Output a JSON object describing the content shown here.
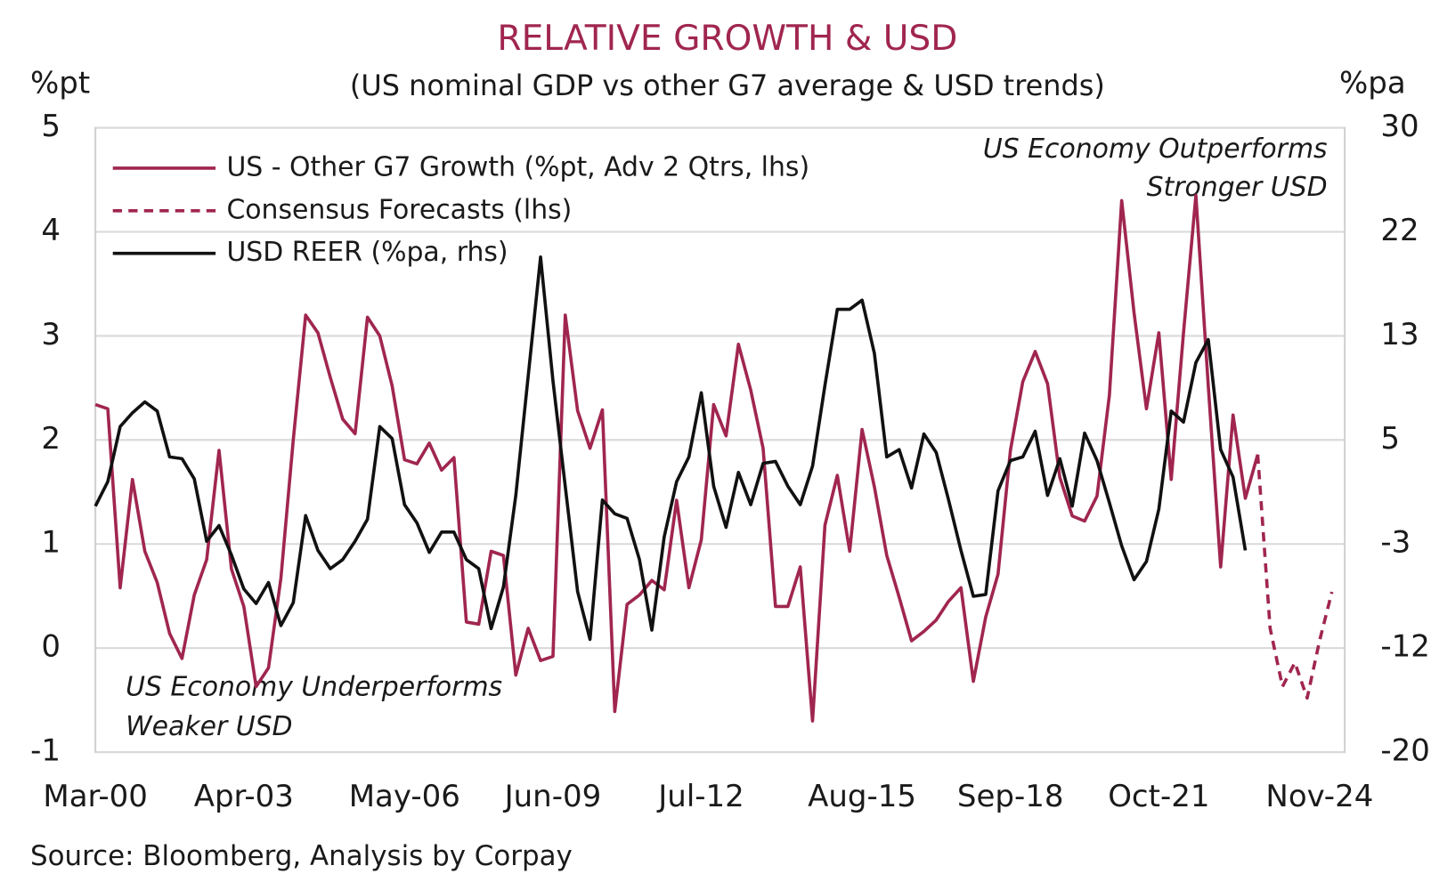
{
  "chart_data": {
    "type": "line",
    "title": "RELATIVE GROWTH & USD",
    "subtitle": "(US nominal GDP vs other G7 average & USD trends)",
    "y_label": "%pt",
    "y2_label": "%pa",
    "source": "Source: Bloomberg, Analysis by Corpay",
    "annotations": [
      "US Economy Outperforms",
      "Stronger USD",
      "US Economy Underperforms",
      "Weaker USD"
    ],
    "categories": [
      "Mar-00",
      null,
      null,
      null,
      null,
      null,
      null,
      null,
      null,
      null,
      null,
      null,
      "Apr-03",
      null,
      null,
      null,
      null,
      null,
      null,
      null,
      null,
      null,
      null,
      null,
      null,
      "May-06",
      null,
      null,
      null,
      null,
      null,
      null,
      null,
      null,
      null,
      null,
      null,
      "Jun-09",
      null,
      null,
      null,
      null,
      null,
      null,
      null,
      null,
      null,
      null,
      null,
      "Jul-12",
      null,
      null,
      null,
      null,
      null,
      null,
      null,
      null,
      null,
      null,
      null,
      null,
      "Aug-15",
      null,
      null,
      null,
      null,
      null,
      null,
      null,
      null,
      null,
      null,
      null,
      "Sep-18",
      null,
      null,
      null,
      null,
      null,
      null,
      null,
      null,
      null,
      null,
      null,
      "Oct-21",
      null,
      null,
      null,
      null,
      null,
      null,
      null,
      null,
      null,
      null,
      null,
      null,
      "Nov-24",
      null
    ],
    "ylim": [
      -1,
      5
    ],
    "yticks": [
      -1,
      0,
      1,
      2,
      3,
      4,
      5
    ],
    "y2lim": [
      -20,
      30
    ],
    "y2ticks": [
      -20,
      {
        "value": -11.667,
        "label": "-12"
      },
      {
        "value": -3.333,
        "label": "-3"
      },
      5,
      {
        "value": 13.333,
        "label": "13"
      },
      {
        "value": 21.667,
        "label": "22"
      },
      30
    ],
    "grid": true,
    "legend": "upper left",
    "series": [
      {
        "name": "US - Other G7 Growth (%pt, Adv 2 Qtrs, lhs)",
        "color": "#a0264f",
        "line_style": "solid",
        "values": [
          2.34,
          2.3,
          0.58,
          1.62,
          0.93,
          0.63,
          0.14,
          -0.1,
          0.51,
          0.85,
          1.9,
          0.76,
          0.4,
          -0.37,
          -0.19,
          0.67,
          2.0,
          3.2,
          3.03,
          2.6,
          2.2,
          2.06,
          3.18,
          3.0,
          2.52,
          1.81,
          1.77,
          1.97,
          1.71,
          1.83,
          0.25,
          0.23,
          0.93,
          0.89,
          -0.26,
          0.19,
          -0.12,
          -0.08,
          3.2,
          2.28,
          1.92,
          2.29,
          -0.61,
          0.42,
          0.51,
          0.65,
          0.56,
          1.42,
          0.58,
          1.04,
          2.34,
          2.04,
          2.92,
          2.48,
          1.92,
          0.4,
          0.4,
          0.78,
          -0.7,
          1.18,
          1.66,
          0.93,
          2.1,
          1.55,
          0.89,
          0.49,
          0.07,
          0.16,
          0.27,
          0.45,
          0.58,
          -0.32,
          0.3,
          0.71,
          1.9,
          2.56,
          2.85,
          2.54,
          1.64,
          1.27,
          1.22,
          1.46,
          2.43,
          4.3,
          3.22,
          2.3,
          3.03,
          1.62,
          3.03,
          4.35,
          2.52,
          0.78,
          2.24,
          1.44,
          1.86,
          null,
          null,
          null,
          null,
          null,
          null
        ]
      },
      {
        "name": "Consensus Forecasts (lhs)",
        "color": "#a0264f",
        "line_style": "dashed",
        "values": [
          null,
          null,
          null,
          null,
          null,
          null,
          null,
          null,
          null,
          null,
          null,
          null,
          null,
          null,
          null,
          null,
          null,
          null,
          null,
          null,
          null,
          null,
          null,
          null,
          null,
          null,
          null,
          null,
          null,
          null,
          null,
          null,
          null,
          null,
          null,
          null,
          null,
          null,
          null,
          null,
          null,
          null,
          null,
          null,
          null,
          null,
          null,
          null,
          null,
          null,
          null,
          null,
          null,
          null,
          null,
          null,
          null,
          null,
          null,
          null,
          null,
          null,
          null,
          null,
          null,
          null,
          null,
          null,
          null,
          null,
          null,
          null,
          null,
          null,
          null,
          null,
          null,
          null,
          null,
          null,
          null,
          null,
          null,
          null,
          null,
          null,
          null,
          null,
          null,
          null,
          null,
          null,
          null,
          null,
          1.86,
          0.19,
          -0.37,
          -0.14,
          -0.48,
          0.07,
          0.54
        ]
      },
      {
        "name": "USD REER (%pa, rhs)",
        "color": "#111111",
        "line_style": "solid",
        "axis": "y2",
        "values": [
          -0.3,
          1.66,
          6.07,
          7.17,
          8.05,
          7.31,
          3.64,
          3.5,
          1.88,
          -3.11,
          -1.86,
          -4.21,
          -6.93,
          -8.1,
          -6.42,
          -9.87,
          -8.03,
          -1.06,
          -3.85,
          -5.31,
          -4.58,
          -3.11,
          -1.35,
          6.07,
          5.11,
          -0.18,
          -1.64,
          -4.0,
          -2.38,
          -2.38,
          -4.58,
          -5.31,
          -10.1,
          -6.78,
          0.56,
          10.1,
          19.65,
          9.74,
          1.29,
          -7.15,
          -10.97,
          0.19,
          -0.91,
          -1.28,
          -4.58,
          -10.23,
          -2.75,
          1.66,
          3.64,
          8.78,
          1.29,
          -2.0,
          2.4,
          -0.18,
          3.13,
          3.28,
          1.29,
          -0.18,
          2.91,
          9.37,
          15.46,
          15.46,
          16.2,
          11.94,
          3.64,
          4.23,
          1.15,
          5.48,
          4.0,
          0.19,
          -3.85,
          -7.52,
          -7.37,
          0.93,
          3.35,
          3.64,
          5.7,
          0.56,
          3.5,
          -0.3,
          5.55,
          3.35,
          -0.03,
          -3.48,
          -6.2,
          -4.73,
          -0.54,
          7.31,
          6.43,
          11.2,
          13.04,
          4.23,
          2.03,
          -3.85,
          null,
          null,
          null,
          null,
          null,
          null,
          null
        ]
      }
    ]
  }
}
